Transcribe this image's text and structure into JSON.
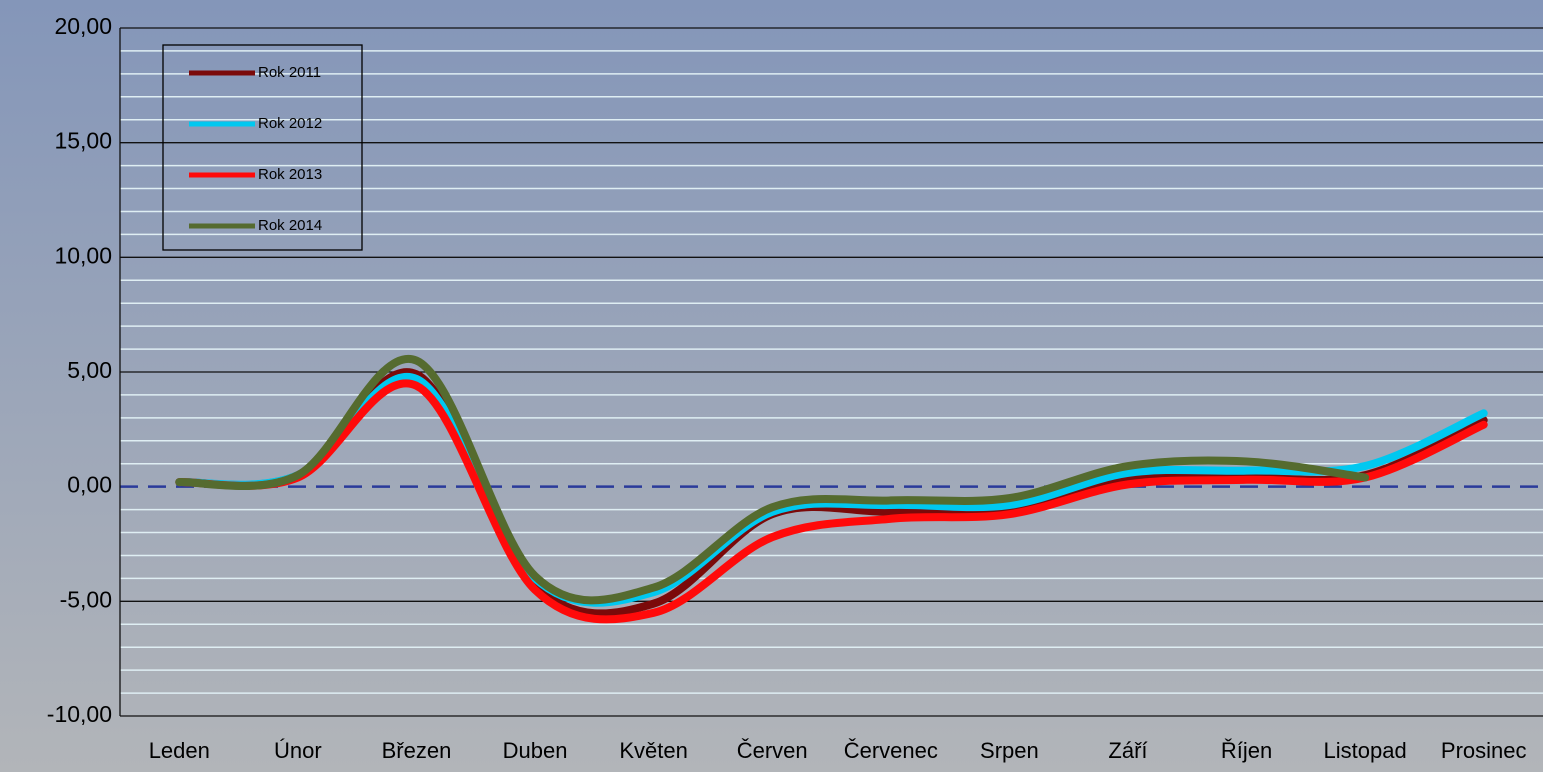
{
  "chart_data": {
    "type": "line",
    "categories": [
      "Leden",
      "Únor",
      "Březen",
      "Duben",
      "Květen",
      "Červen",
      "Červenec",
      "Srpen",
      "Září",
      "Říjen",
      "Listopad",
      "Prosinec"
    ],
    "series": [
      {
        "name": "Rok 2011",
        "color": "#7b0a0a",
        "values": [
          0.2,
          0.5,
          4.9,
          -4.3,
          -5.1,
          -1.2,
          -1.1,
          -1.0,
          0.4,
          0.4,
          0.5,
          2.9
        ]
      },
      {
        "name": "Rok 2012",
        "color": "#00c8f0",
        "values": [
          0.2,
          0.5,
          4.7,
          -4.0,
          -4.6,
          -1.1,
          -0.8,
          -0.8,
          0.6,
          0.7,
          0.9,
          3.2
        ]
      },
      {
        "name": "Rok 2013",
        "color": "#ff0a0a",
        "values": [
          0.2,
          0.4,
          4.4,
          -4.5,
          -5.5,
          -2.2,
          -1.4,
          -1.2,
          0.1,
          0.3,
          0.4,
          2.7
        ]
      },
      {
        "name": "Rok 2014",
        "color": "#556b2f",
        "values": [
          0.2,
          0.5,
          5.5,
          -3.9,
          -4.4,
          -0.9,
          -0.6,
          -0.5,
          0.9,
          1.1,
          0.4,
          null
        ]
      }
    ],
    "ylim": [
      -10,
      20
    ],
    "yticks": [
      {
        "value": -10,
        "label": "-10,00"
      },
      {
        "value": -5,
        "label": "-5,00"
      },
      {
        "value": 0,
        "label": "0,00"
      },
      {
        "value": 5,
        "label": "5,00"
      },
      {
        "value": 10,
        "label": "10,00"
      },
      {
        "value": 15,
        "label": "15,00"
      },
      {
        "value": 20,
        "label": "20,00"
      }
    ],
    "minor_yticks": [
      -9,
      -8,
      -7,
      -6,
      -4,
      -3,
      -2,
      -1,
      1,
      2,
      3,
      4,
      6,
      7,
      8,
      9,
      11,
      12,
      13,
      14,
      16,
      17,
      18,
      19
    ],
    "grid": true,
    "legend": "upper left"
  }
}
